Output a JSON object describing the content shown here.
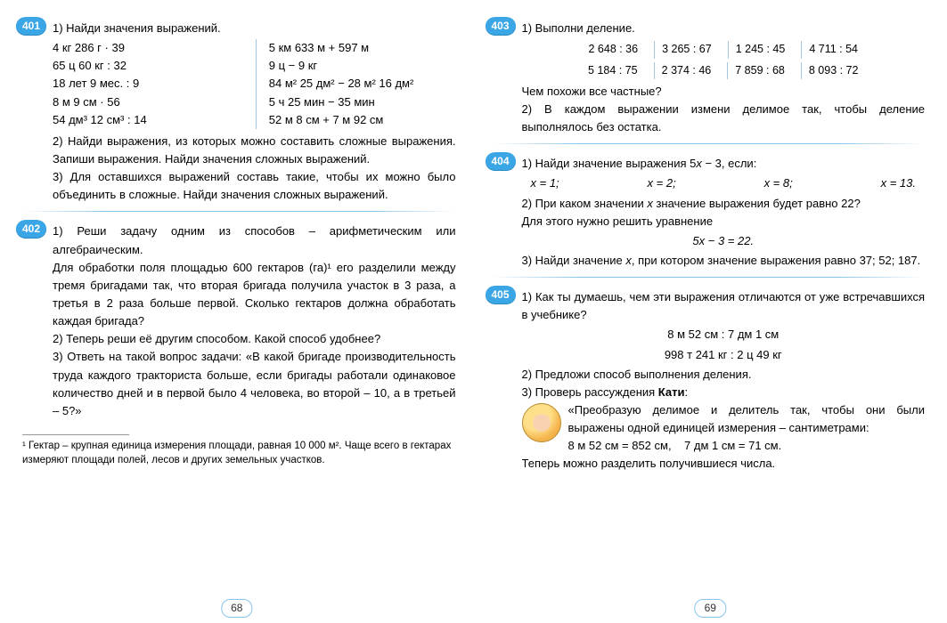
{
  "left": {
    "pageNumber": "68",
    "ex401": {
      "num": "401",
      "p1": "1) Найди значения выражений.",
      "colA": [
        "4 кг 286 г · 39",
        "65 ц 60 кг : 32",
        "18 лет 9 мес. : 9",
        "8 м 9 см · 56",
        "54 дм³ 12 см³ : 14"
      ],
      "colB": [
        "5 км 633 м + 597 м",
        "9 ц − 9 кг",
        "84 м² 25 дм² − 28 м² 16 дм²",
        "5 ч 25 мин − 35 мин",
        "52 м 8 см + 7 м 92 см"
      ],
      "p2": "2) Найди выражения, из которых можно составить сложные выражения. Запиши выражения. Найди значения сложных выражений.",
      "p3": "3) Для оставшихся выражений составь такие, чтобы их можно было объединить в сложные. Найди значения сложных выражений."
    },
    "ex402": {
      "num": "402",
      "p1": "1) Реши задачу одним из способов – арифметическим или алгебраическим.",
      "task": "Для обработки поля площадью 600 гектаров (га)¹ его разделили между тремя бригадами так, что вторая бригада получила участок в 3 раза, а третья в 2 раза больше первой. Сколько гектаров должна обработать каждая бригада?",
      "p2": "2) Теперь реши её другим способом. Какой способ удобнее?",
      "p3": "3) Ответь на такой вопрос задачи: «В какой бригаде производительность труда каждого тракториста больше, если бригады работали одинаковое количество дней и в первой было 4 человека, во второй – 10, а в третьей – 5?»"
    },
    "footnote": "¹ Гектар – крупная единица измерения площади, равная 10 000 м². Чаще всего в гектарах измеряют площади полей, лесов и других земельных участков."
  },
  "right": {
    "pageNumber": "69",
    "ex403": {
      "num": "403",
      "p1": "1) Выполни деление.",
      "row1": [
        "2 648 : 36",
        "3 265 : 67",
        "1 245 : 45",
        "4 711 : 54"
      ],
      "row2": [
        "5 184 : 75",
        "2 374 : 46",
        "7 859 : 68",
        "8 093 : 72"
      ],
      "q": "Чем похожи все частные?",
      "p2": "2) В каждом выражении измени делимое так, чтобы деление выполнялось без остатка."
    },
    "ex404": {
      "num": "404",
      "p1_a": "1) Найди значение выражения 5",
      "p1_b": " − 3, если:",
      "xs": [
        "x = 1;",
        "x = 2;",
        "x = 8;",
        "x = 13."
      ],
      "p2_a": "2) При каком значении ",
      "p2_b": " значение выражения будет равно 22?",
      "p3": "Для этого нужно решить уравнение",
      "eq": "5x − 3 = 22.",
      "p4_a": "3) Найди значение ",
      "p4_b": ", при котором значение выражения равно 37; 52; 187."
    },
    "ex405": {
      "num": "405",
      "p1": "1) Как ты думаешь, чем эти выражения отличаются от уже встречавшихся в учебнике?",
      "e1": "8 м 52 см : 7 дм 1 см",
      "e2": "998 т 241 кг : 2 ц 49 кг",
      "p2": "2) Предложи способ выполнения деления.",
      "p3_a": "3) Проверь рассуждения ",
      "p3_b": "Кати",
      "p3_c": ":",
      "q1": "«Преобразую делимое и делитель так, чтобы они были выражены одной единицей измерения – сантиметрами:",
      "q2a": "8 м 52 см = 852 см,",
      "q2b": "7 дм 1 см = 71 см.",
      "q3": "Теперь можно разделить получившиеся числа."
    }
  }
}
